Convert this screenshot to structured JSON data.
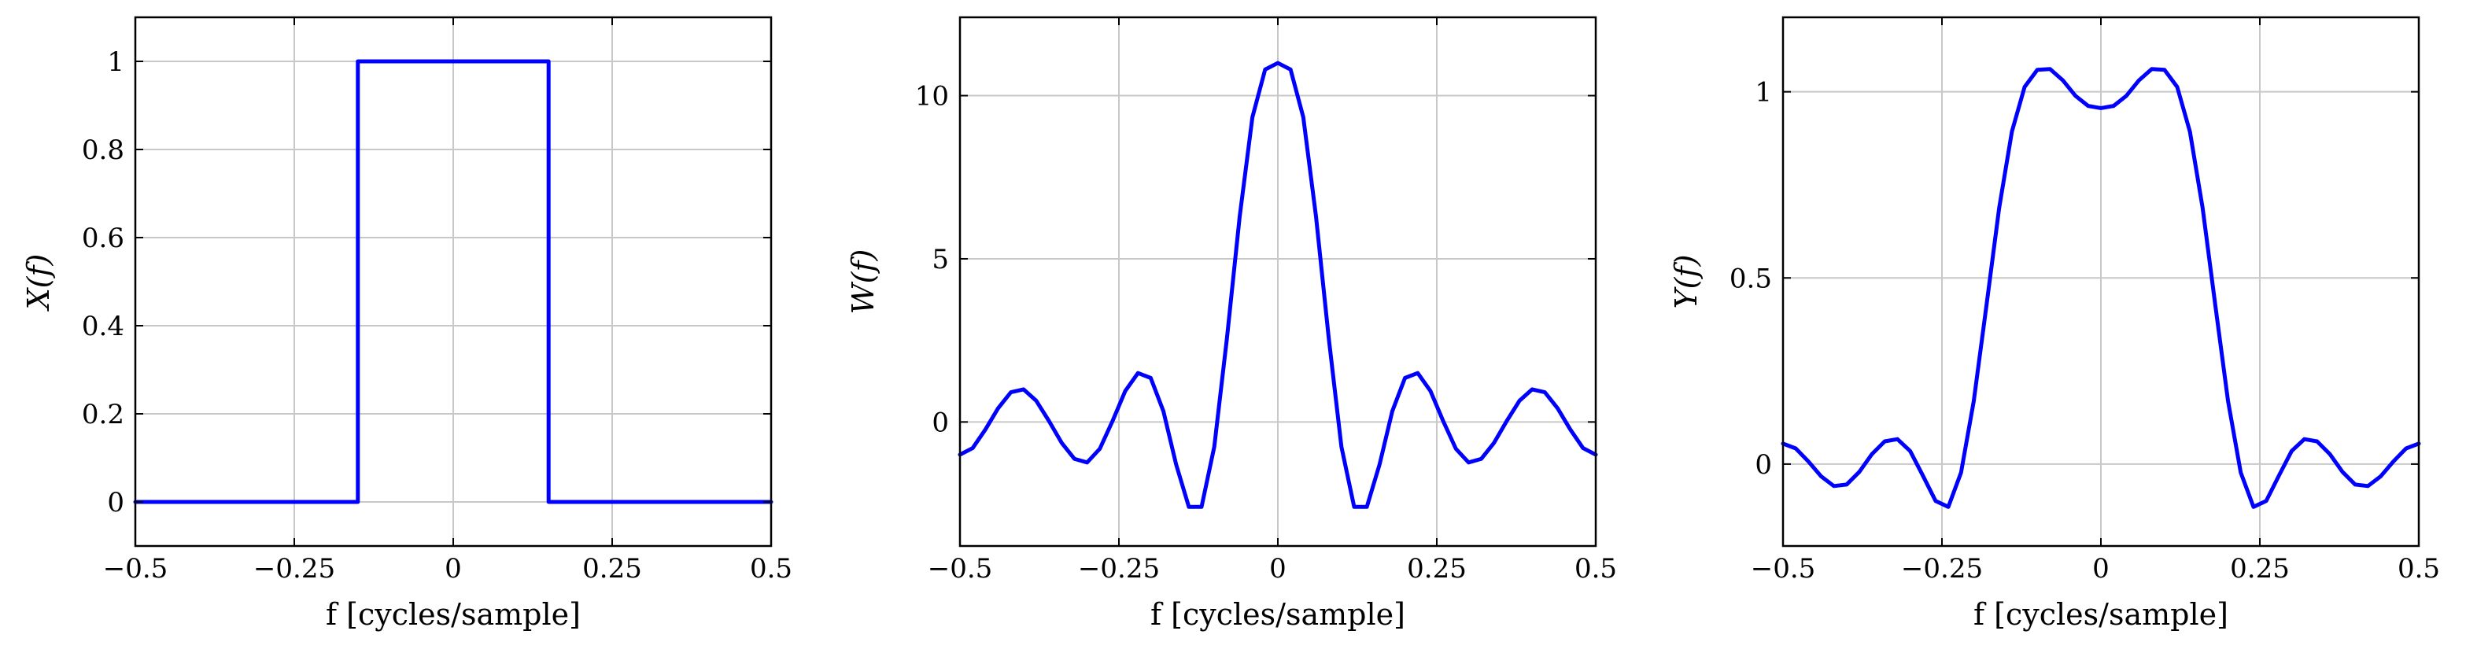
{
  "chart_data": [
    {
      "type": "line",
      "xlabel": "f [cycles/sample]",
      "ylabel": "X(f)",
      "xlim": [
        -0.5,
        0.5
      ],
      "ylim": [
        -0.1,
        1.1
      ],
      "xticks": [
        -0.5,
        -0.25,
        0,
        0.25,
        0.5
      ],
      "xtick_labels": [
        "−0.5",
        "−0.25",
        "0",
        "0.25",
        "0.5"
      ],
      "yticks": [
        0,
        0.2,
        0.4,
        0.6,
        0.8,
        1
      ],
      "ytick_labels": [
        "0",
        "0.2",
        "0.4",
        "0.6",
        "0.8",
        "1"
      ],
      "grid": true,
      "color": "#0000ff",
      "series": [
        {
          "x": [
            -0.5,
            -0.15,
            -0.15,
            0.15,
            0.15,
            0.5
          ],
          "y": [
            0,
            0,
            1,
            1,
            0,
            0
          ]
        }
      ]
    },
    {
      "type": "line",
      "xlabel": "f [cycles/sample]",
      "ylabel": "W(f)",
      "xlim": [
        -0.5,
        0.5
      ],
      "ylim": [
        -3.8,
        12.4
      ],
      "xticks": [
        -0.5,
        -0.25,
        0,
        0.25,
        0.5
      ],
      "xtick_labels": [
        "−0.5",
        "−0.25",
        "0",
        "0.25",
        "0.5"
      ],
      "yticks": [
        0,
        5,
        10
      ],
      "ytick_labels": [
        "0",
        "5",
        "10"
      ],
      "grid": true,
      "color": "#0000ff",
      "series": [
        {
          "x": [
            -0.5,
            -0.48,
            -0.46,
            -0.44,
            -0.42,
            -0.4,
            -0.38,
            -0.36,
            -0.34,
            -0.32,
            -0.3,
            -0.28,
            -0.26,
            -0.24,
            -0.22,
            -0.2,
            -0.18,
            -0.16,
            -0.14,
            -0.12,
            -0.1,
            -0.08,
            -0.06,
            -0.04,
            -0.02,
            0,
            0.02,
            0.04,
            0.06,
            0.08,
            0.1,
            0.12,
            0.14,
            0.16,
            0.18,
            0.2,
            0.22,
            0.24,
            0.26,
            0.28,
            0.3,
            0.32,
            0.34,
            0.36,
            0.38,
            0.4,
            0.42,
            0.44,
            0.46,
            0.48,
            0.5
          ],
          "y": [
            -1,
            -0.8,
            -0.23,
            0.42,
            0.91,
            1,
            0.65,
            0.03,
            -0.64,
            -1.13,
            -1.24,
            -0.82,
            0.03,
            0.95,
            1.5,
            1.35,
            0.33,
            -1.3,
            -2.6,
            -2.6,
            -0.76,
            2.58,
            6.3,
            9.34,
            10.8,
            11,
            10.8,
            9.34,
            6.3,
            2.58,
            -0.76,
            -2.6,
            -2.6,
            -1.3,
            0.33,
            1.35,
            1.5,
            0.95,
            0.03,
            -0.82,
            -1.24,
            -1.13,
            -0.64,
            0.03,
            0.65,
            1,
            0.91,
            0.42,
            -0.23,
            -0.8,
            -1
          ]
        }
      ]
    },
    {
      "type": "line",
      "xlabel": "f [cycles/sample]",
      "ylabel": "Y(f)",
      "xlim": [
        -0.5,
        0.5
      ],
      "ylim": [
        -0.22,
        1.2
      ],
      "xticks": [
        -0.5,
        -0.25,
        0,
        0.25,
        0.5
      ],
      "xtick_labels": [
        "−0.5",
        "−0.25",
        "0",
        "0.25",
        "0.5"
      ],
      "yticks": [
        0,
        0.5,
        1
      ],
      "ytick_labels": [
        "0",
        "0.5",
        "1"
      ],
      "grid": true,
      "color": "#0000ff",
      "series": [
        {
          "x": [
            -0.5,
            -0.48,
            -0.46,
            -0.44,
            -0.42,
            -0.4,
            -0.38,
            -0.36,
            -0.34,
            -0.32,
            -0.3,
            -0.28,
            -0.26,
            -0.24,
            -0.22,
            -0.2,
            -0.18,
            -0.16,
            -0.14,
            -0.12,
            -0.1,
            -0.08,
            -0.06,
            -0.04,
            -0.02,
            0,
            0.02,
            0.04,
            0.06,
            0.08,
            0.1,
            0.12,
            0.14,
            0.16,
            0.18,
            0.2,
            0.22,
            0.24,
            0.26,
            0.28,
            0.3,
            0.32,
            0.34,
            0.36,
            0.38,
            0.4,
            0.42,
            0.44,
            0.46,
            0.48,
            0.5
          ],
          "y": [
            0.055,
            0.042,
            0.007,
            -0.033,
            -0.059,
            -0.055,
            -0.021,
            0.027,
            0.061,
            0.067,
            0.035,
            -0.031,
            -0.099,
            -0.115,
            -0.023,
            0.169,
            0.426,
            0.688,
            0.893,
            1.013,
            1.059,
            1.061,
            1.031,
            0.989,
            0.962,
            0.956,
            0.962,
            0.989,
            1.031,
            1.061,
            1.059,
            1.013,
            0.893,
            0.688,
            0.426,
            0.169,
            -0.023,
            -0.115,
            -0.099,
            -0.031,
            0.035,
            0.067,
            0.061,
            0.027,
            -0.021,
            -0.055,
            -0.059,
            -0.033,
            0.007,
            0.042,
            0.055
          ]
        }
      ]
    }
  ]
}
